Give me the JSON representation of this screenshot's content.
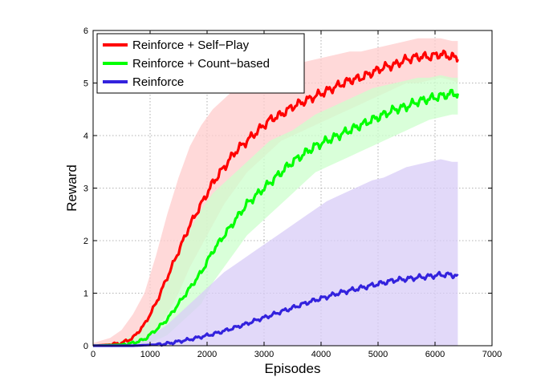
{
  "chart_data": {
    "type": "line",
    "title": "",
    "xlabel": "Episodes",
    "ylabel": "Reward",
    "xlim": [
      0,
      7000
    ],
    "ylim": [
      0,
      6
    ],
    "xticks": [
      0,
      1000,
      2000,
      3000,
      4000,
      5000,
      6000,
      7000
    ],
    "yticks": [
      0,
      1,
      2,
      3,
      4,
      5,
      6
    ],
    "grid": true,
    "legend_position": "top-left",
    "series": [
      {
        "name": "Reinforce + Self−Play",
        "color": "#ff0000",
        "band_color": "#ffcccc",
        "x": [
          0,
          300,
          500,
          700,
          900,
          1100,
          1300,
          1500,
          1700,
          1900,
          2100,
          2300,
          2500,
          2700,
          2900,
          3100,
          3300,
          3500,
          3700,
          3900,
          4100,
          4300,
          4500,
          4700,
          4900,
          5100,
          5300,
          5500,
          5700,
          5900,
          6100,
          6300,
          6400
        ],
        "y": [
          0,
          0.02,
          0.05,
          0.15,
          0.4,
          0.8,
          1.3,
          1.8,
          2.3,
          2.7,
          3.1,
          3.4,
          3.7,
          3.9,
          4.1,
          4.3,
          4.4,
          4.55,
          4.65,
          4.75,
          4.85,
          4.95,
          5.05,
          5.1,
          5.2,
          5.3,
          5.35,
          5.45,
          5.5,
          5.5,
          5.55,
          5.5,
          5.45
        ],
        "lower": [
          0,
          0,
          0,
          0,
          0.1,
          0.3,
          0.6,
          1.0,
          1.5,
          1.9,
          2.3,
          2.7,
          3.0,
          3.3,
          3.5,
          3.7,
          3.9,
          4.0,
          4.1,
          4.2,
          4.3,
          4.4,
          4.5,
          4.6,
          4.7,
          4.8,
          4.9,
          5.0,
          5.0,
          5.05,
          5.1,
          5.05,
          5.0
        ],
        "upper": [
          0.05,
          0.15,
          0.3,
          0.6,
          1.0,
          1.7,
          2.5,
          3.2,
          3.8,
          4.2,
          4.5,
          4.7,
          4.9,
          5.0,
          5.1,
          5.2,
          5.3,
          5.35,
          5.4,
          5.45,
          5.5,
          5.55,
          5.6,
          5.6,
          5.65,
          5.7,
          5.75,
          5.8,
          5.85,
          5.85,
          5.85,
          5.8,
          5.8
        ]
      },
      {
        "name": "Reinforce + Count−based",
        "color": "#00ff00",
        "band_color": "#ccffcc",
        "x": [
          0,
          300,
          500,
          700,
          900,
          1100,
          1300,
          1500,
          1700,
          1900,
          2100,
          2300,
          2500,
          2700,
          2900,
          3100,
          3300,
          3500,
          3700,
          3900,
          4100,
          4300,
          4500,
          4700,
          4900,
          5100,
          5300,
          5500,
          5700,
          5900,
          6100,
          6300,
          6400
        ],
        "y": [
          0,
          0.01,
          0.02,
          0.05,
          0.12,
          0.3,
          0.5,
          0.8,
          1.1,
          1.4,
          1.8,
          2.1,
          2.4,
          2.7,
          2.9,
          3.1,
          3.3,
          3.5,
          3.65,
          3.8,
          3.9,
          4.0,
          4.1,
          4.2,
          4.3,
          4.4,
          4.5,
          4.55,
          4.65,
          4.7,
          4.75,
          4.8,
          4.8
        ],
        "lower": [
          0,
          0,
          0,
          0,
          0.02,
          0.1,
          0.2,
          0.4,
          0.6,
          0.8,
          1.2,
          1.5,
          1.8,
          2.1,
          2.3,
          2.5,
          2.7,
          2.9,
          3.1,
          3.3,
          3.4,
          3.5,
          3.6,
          3.7,
          3.8,
          3.9,
          4.0,
          4.1,
          4.2,
          4.3,
          4.35,
          4.4,
          4.4
        ],
        "upper": [
          0.03,
          0.05,
          0.1,
          0.2,
          0.4,
          0.8,
          1.3,
          1.8,
          2.2,
          2.6,
          2.9,
          3.1,
          3.3,
          3.5,
          3.7,
          3.9,
          4.0,
          4.1,
          4.25,
          4.4,
          4.5,
          4.6,
          4.7,
          4.8,
          4.9,
          4.95,
          5.0,
          5.05,
          5.1,
          5.1,
          5.15,
          5.1,
          5.1
        ]
      },
      {
        "name": "Reinforce",
        "color": "#3322dd",
        "band_color": "#d8ccf7",
        "x": [
          0,
          300,
          500,
          700,
          900,
          1100,
          1300,
          1500,
          1700,
          1900,
          2100,
          2300,
          2500,
          2700,
          2900,
          3100,
          3300,
          3500,
          3700,
          3900,
          4100,
          4300,
          4500,
          4700,
          4900,
          5100,
          5300,
          5500,
          5700,
          5900,
          6100,
          6300,
          6400
        ],
        "y": [
          0,
          0,
          0,
          0,
          0.01,
          0.02,
          0.04,
          0.08,
          0.12,
          0.17,
          0.22,
          0.28,
          0.35,
          0.42,
          0.5,
          0.57,
          0.65,
          0.72,
          0.8,
          0.87,
          0.93,
          1.0,
          1.05,
          1.1,
          1.15,
          1.2,
          1.25,
          1.27,
          1.3,
          1.32,
          1.35,
          1.35,
          1.33
        ],
        "lower": [
          0,
          0,
          0,
          0,
          0,
          0,
          0,
          0,
          0,
          0,
          0,
          0,
          0,
          0,
          0,
          0,
          0,
          0,
          0,
          0,
          0,
          0,
          0,
          0,
          0,
          0,
          0,
          0,
          0,
          0,
          0,
          0,
          0
        ],
        "upper": [
          0.02,
          0.03,
          0.05,
          0.08,
          0.15,
          0.25,
          0.4,
          0.6,
          0.8,
          1.0,
          1.2,
          1.4,
          1.55,
          1.7,
          1.85,
          2.0,
          2.15,
          2.3,
          2.45,
          2.6,
          2.75,
          2.85,
          2.95,
          3.05,
          3.15,
          3.2,
          3.3,
          3.4,
          3.45,
          3.5,
          3.55,
          3.5,
          3.5
        ]
      }
    ]
  }
}
